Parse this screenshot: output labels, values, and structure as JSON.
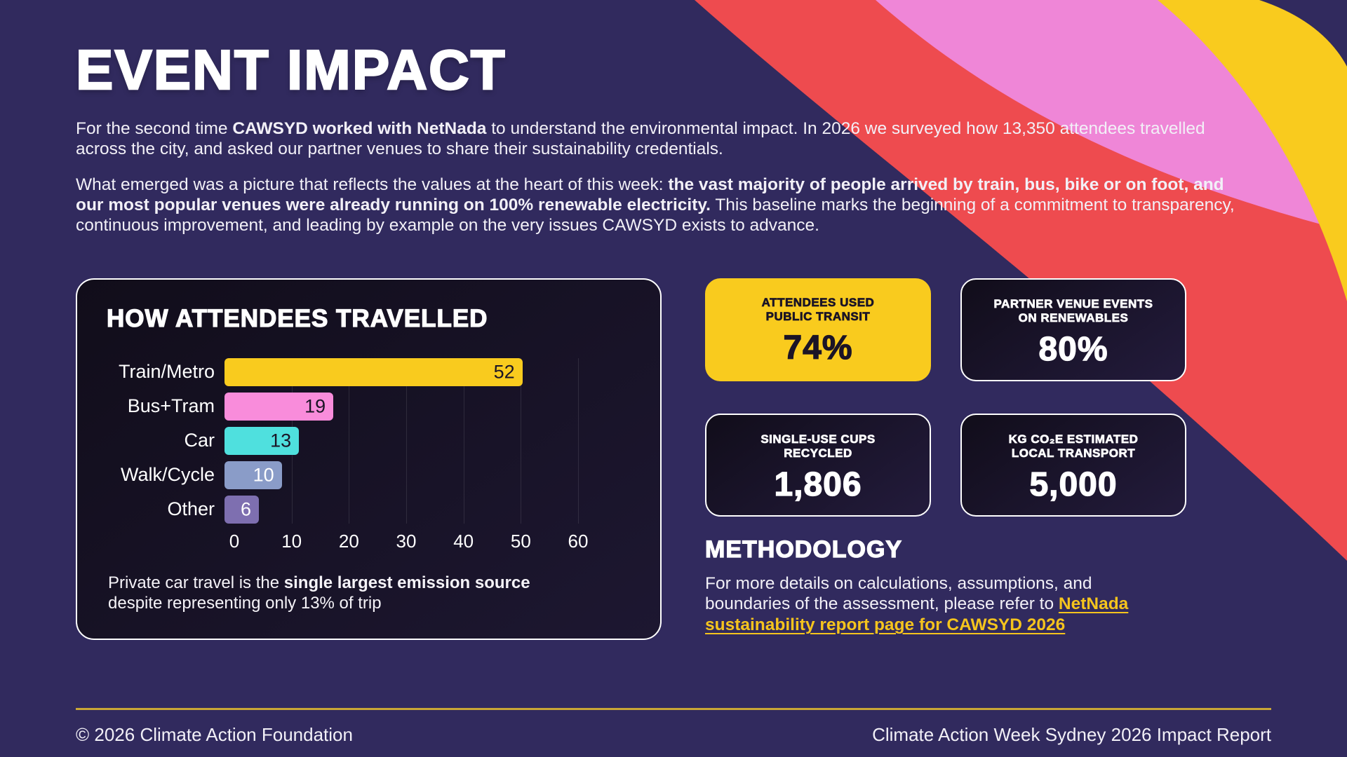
{
  "page_title": "EVENT IMPACT",
  "intro_paragraphs": [
    [
      {
        "text": "For the second time "
      },
      {
        "text": "CAWSYD worked with NetNada",
        "bold": true
      },
      {
        "text": " to understand the environmental impact. In 2026 we surveyed how 13,350 attendees travelled across the city, and asked our partner venues to share their sustainability credentials."
      }
    ],
    [
      {
        "text": "What emerged was a picture that reflects the values at the heart of this week: "
      },
      {
        "text": "the vast majority of people arrived by train, bus, bike or on foot, and our most popular venues were already running on 100% renewable electricity.",
        "bold": true
      },
      {
        "text": " This baseline marks the beginning of a commitment to transparency, continuous improvement, and leading by example on the very issues CAWSYD exists to advance."
      }
    ]
  ],
  "chart_data": {
    "type": "bar",
    "orientation": "horizontal",
    "title": "HOW ATTENDEES TRAVELLED",
    "categories": [
      "Train/Metro",
      "Bus+Tram",
      "Car",
      "Walk/Cycle",
      "Other"
    ],
    "values": [
      52,
      19,
      13,
      10,
      6
    ],
    "bar_colors": [
      "#f9cb1e",
      "#f98cdb",
      "#4fe0de",
      "#8a9cc8",
      "#7e6fb0"
    ],
    "value_label_colors": [
      "#1b1426",
      "#1b1426",
      "#1b1426",
      "#ffffff",
      "#ffffff"
    ],
    "xlim": [
      0,
      60
    ],
    "x_ticks": [
      0,
      10,
      20,
      30,
      40,
      50,
      60
    ],
    "grid": true,
    "legend": false,
    "caption_segments": [
      {
        "text": "Private car travel is the "
      },
      {
        "text": "single largest emission source",
        "bold": true
      },
      {
        "text": " despite representing only 13% of trip"
      }
    ]
  },
  "stat_cards": [
    {
      "label_line1": "ATTENDEES USED",
      "label_line2": "PUBLIC TRANSIT",
      "value": "74%",
      "style": "yellow"
    },
    {
      "label_line1": "PARTNER VENUE EVENTS",
      "label_line2": "ON RENEWABLES",
      "value": "80%",
      "style": "dark"
    },
    {
      "label_line1": "SINGLE-USE CUPS",
      "label_line2": "RECYCLED",
      "value": "1,806",
      "style": "dark"
    },
    {
      "label_line1": "KG CO₂E ESTIMATED",
      "label_line2": "LOCAL TRANSPORT",
      "value": "5,000",
      "style": "dark"
    }
  ],
  "methodology": {
    "heading": "METHODOLOGY",
    "body_segments": [
      {
        "text": "For more details on calculations, assumptions, and boundaries of the assessment, please refer to "
      },
      {
        "text": "NetNada sustainability report page for CAWSYD 2026",
        "bold": true,
        "link": true
      }
    ]
  },
  "footer": {
    "left": "© 2026 Climate Action Foundation",
    "right": "Climate Action Week Sydney 2026 Impact Report"
  },
  "colors": {
    "background": "#312a5e",
    "panel_bg": "#150f20",
    "accent_yellow": "#f9cb1e",
    "accent_pink": "#ef86d7",
    "accent_red": "#ee4b4f",
    "footer_rule": "#c9a636"
  }
}
